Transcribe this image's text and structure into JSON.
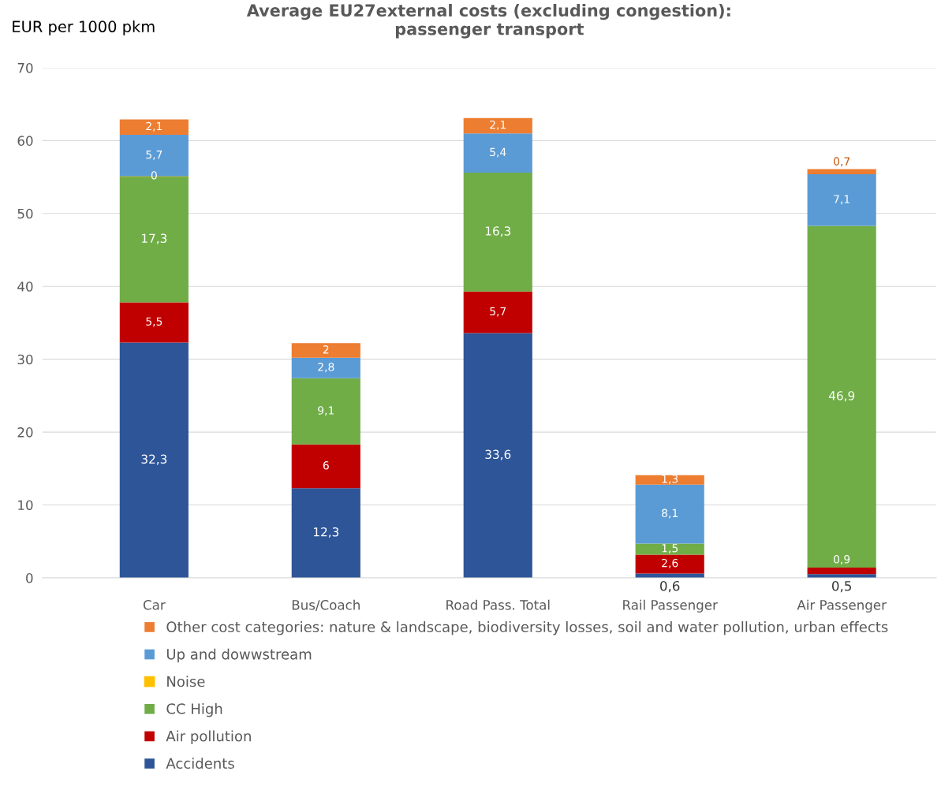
{
  "chart_data": {
    "type": "bar",
    "stacked": true,
    "title": "Average EU27external costs (excluding congestion):\npassenger transport",
    "ylabel": "EUR per 1000 pkm",
    "categories": [
      "Car",
      "Bus/Coach",
      "Road Pass. Total",
      "Rail Passenger",
      "Air Passenger"
    ],
    "series": [
      {
        "name": "Accidents",
        "color": "#2e5597",
        "values": [
          32.3,
          12.3,
          33.6,
          0.6,
          0.5
        ],
        "value_labels": [
          "32,3",
          "12,3",
          "33,6",
          "0,6",
          "0,5"
        ]
      },
      {
        "name": "Air pollution",
        "color": "#c00000",
        "values": [
          5.5,
          6,
          5.7,
          2.6,
          0.9
        ],
        "value_labels": [
          "5,5",
          "6",
          "5,7",
          "2,6",
          "0,9"
        ]
      },
      {
        "name": "CC High",
        "color": "#70ad47",
        "values": [
          17.3,
          9.1,
          16.3,
          1.5,
          46.9
        ],
        "value_labels": [
          "17,3",
          "9,1",
          "16,3",
          "1,5",
          "46,9"
        ]
      },
      {
        "name": "Noise",
        "color": "#ffc000",
        "values": [
          0,
          null,
          null,
          null,
          null
        ],
        "value_labels": [
          "0",
          null,
          null,
          null,
          null
        ]
      },
      {
        "name": "Up and dowwstream",
        "color": "#5b9bd5",
        "values": [
          5.7,
          2.8,
          5.4,
          8.1,
          7.1
        ],
        "value_labels": [
          "5,7",
          "2,8",
          "5,4",
          "8,1",
          "7,1"
        ]
      },
      {
        "name": "Other cost categories: nature & landscape, biodiversity losses, soil and water pollution, urban effects",
        "color": "#ed7d31",
        "values": [
          2.1,
          2,
          2.1,
          1.3,
          0.7
        ],
        "value_labels": [
          "2,1",
          "2",
          "2,1",
          "1,3",
          "0,7"
        ]
      }
    ],
    "ylim": [
      0,
      70
    ],
    "yticks": [
      0,
      10,
      20,
      30,
      40,
      50,
      60,
      70
    ],
    "grid": "y",
    "legend": "bottom"
  }
}
